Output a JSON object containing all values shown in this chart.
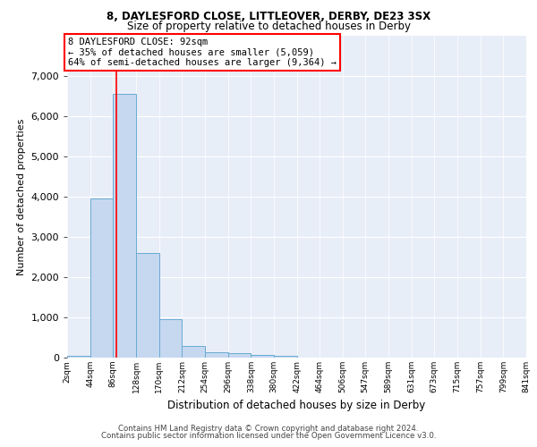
{
  "title1": "8, DAYLESFORD CLOSE, LITTLEOVER, DERBY, DE23 3SX",
  "title2": "Size of property relative to detached houses in Derby",
  "xlabel": "Distribution of detached houses by size in Derby",
  "ylabel": "Number of detached properties",
  "footer1": "Contains HM Land Registry data © Crown copyright and database right 2024.",
  "footer2": "Contains public sector information licensed under the Open Government Licence v3.0.",
  "annotation_title": "8 DAYLESFORD CLOSE: 92sqm",
  "annotation_line2": "← 35% of detached houses are smaller (5,059)",
  "annotation_line3": "64% of semi-detached houses are larger (9,364) →",
  "bar_edges": [
    2,
    44,
    86,
    128,
    170,
    212,
    254,
    296,
    338,
    380,
    422,
    464,
    506,
    547,
    589,
    631,
    673,
    715,
    757,
    799,
    841
  ],
  "bar_heights": [
    50,
    3950,
    6550,
    2600,
    950,
    300,
    130,
    110,
    60,
    50,
    0,
    0,
    0,
    0,
    0,
    0,
    0,
    0,
    0,
    0
  ],
  "bar_color": "#c5d8f0",
  "bar_edge_color": "#6aabd2",
  "red_line_x": 92,
  "ylim": [
    0,
    8000
  ],
  "yticks": [
    0,
    1000,
    2000,
    3000,
    4000,
    5000,
    6000,
    7000
  ],
  "bg_color": "#e8eef8",
  "grid_color": "#ffffff",
  "title1_fontsize": 8.5,
  "title2_fontsize": 8.5,
  "ylabel_fontsize": 8,
  "xlabel_fontsize": 8.5,
  "ytick_fontsize": 8,
  "xtick_fontsize": 6.5,
  "footer_fontsize": 6.2,
  "ann_fontsize": 7.5
}
